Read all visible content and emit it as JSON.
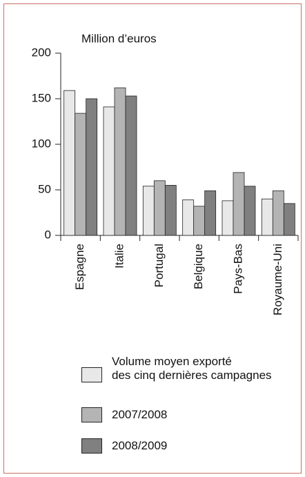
{
  "chart_data": {
    "type": "bar",
    "y_label": "Million d’euros",
    "categories": [
      "Espagne",
      "Italie",
      "Portugal",
      "Belgique",
      "Pays-Bas",
      "Royaume-Uni"
    ],
    "series": [
      {
        "name": "Volume moyen exporté\ndes cinq dernières campagnes",
        "color": "#e8e8e8",
        "values": [
          159,
          141,
          54,
          39,
          38,
          40
        ]
      },
      {
        "name": "2007/2008",
        "color": "#b4b4b4",
        "values": [
          134,
          162,
          60,
          32,
          69,
          49
        ]
      },
      {
        "name": "2008/2009",
        "color": "#808080",
        "values": [
          150,
          153,
          55,
          49,
          54,
          35
        ]
      }
    ],
    "ylim": [
      0,
      200
    ],
    "yticks": [
      0,
      50,
      100,
      150,
      200
    ],
    "grid": false
  }
}
